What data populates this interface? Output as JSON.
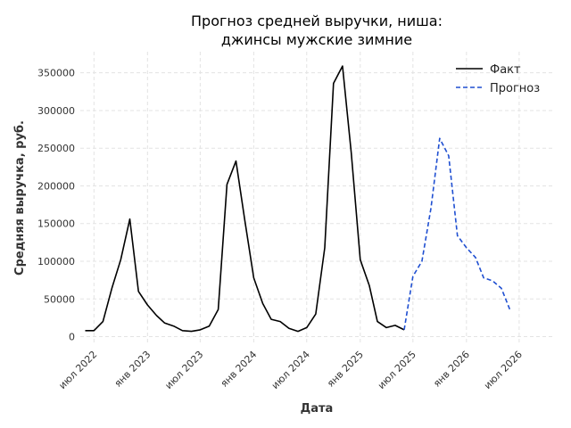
{
  "chart_data": {
    "type": "line",
    "title": [
      "Прогноз средней выручки, ниша:",
      "джинсы мужские зимние"
    ],
    "xlabel": "Дата",
    "ylabel": "Средняя выручка, руб.",
    "xlim": [
      "2022-05-15",
      "2026-11-01"
    ],
    "ylim": [
      -10000,
      378000
    ],
    "yticks": [
      0,
      50000,
      100000,
      150000,
      200000,
      250000,
      300000,
      350000
    ],
    "xticks": [
      {
        "date": "2022-07-01",
        "label": "июл 2022"
      },
      {
        "date": "2023-01-01",
        "label": "янв 2023"
      },
      {
        "date": "2023-07-01",
        "label": "июл 2023"
      },
      {
        "date": "2024-01-01",
        "label": "янв 2024"
      },
      {
        "date": "2024-07-01",
        "label": "июл 2024"
      },
      {
        "date": "2025-01-01",
        "label": "янв 2025"
      },
      {
        "date": "2025-07-01",
        "label": "июл 2025"
      },
      {
        "date": "2026-01-01",
        "label": "янв 2026"
      },
      {
        "date": "2026-07-01",
        "label": "июл 2026"
      }
    ],
    "grid": true,
    "legend_position": "top-right",
    "series": [
      {
        "name": "Факт",
        "color": "#000000",
        "style": "solid",
        "points": [
          [
            "2022-06-01",
            8000
          ],
          [
            "2022-07-01",
            8000
          ],
          [
            "2022-08-01",
            20000
          ],
          [
            "2022-09-01",
            65000
          ],
          [
            "2022-10-01",
            102000
          ],
          [
            "2022-11-01",
            156000
          ],
          [
            "2022-12-01",
            60000
          ],
          [
            "2023-01-01",
            42000
          ],
          [
            "2023-02-01",
            28000
          ],
          [
            "2023-03-01",
            18000
          ],
          [
            "2023-04-01",
            14000
          ],
          [
            "2023-05-01",
            8000
          ],
          [
            "2023-06-01",
            7000
          ],
          [
            "2023-07-01",
            9000
          ],
          [
            "2023-08-01",
            14000
          ],
          [
            "2023-09-01",
            36000
          ],
          [
            "2023-10-01",
            202000
          ],
          [
            "2023-11-01",
            233000
          ],
          [
            "2023-12-01",
            155000
          ],
          [
            "2024-01-01",
            78000
          ],
          [
            "2024-02-01",
            44000
          ],
          [
            "2024-03-01",
            23000
          ],
          [
            "2024-04-01",
            20000
          ],
          [
            "2024-05-01",
            11000
          ],
          [
            "2024-06-01",
            7000
          ],
          [
            "2024-07-01",
            12000
          ],
          [
            "2024-08-01",
            30000
          ],
          [
            "2024-09-01",
            118000
          ],
          [
            "2024-10-01",
            336000
          ],
          [
            "2024-11-01",
            359000
          ],
          [
            "2024-12-01",
            244000
          ],
          [
            "2025-01-01",
            102000
          ],
          [
            "2025-02-01",
            68000
          ],
          [
            "2025-03-01",
            20000
          ],
          [
            "2025-04-01",
            12000
          ],
          [
            "2025-05-01",
            15000
          ],
          [
            "2025-06-01",
            9000
          ]
        ]
      },
      {
        "name": "Прогноз",
        "color": "#1f4fd1",
        "style": "dashed",
        "points": [
          [
            "2025-06-01",
            9000
          ],
          [
            "2025-07-01",
            80000
          ],
          [
            "2025-08-01",
            100000
          ],
          [
            "2025-09-01",
            170000
          ],
          [
            "2025-10-01",
            263000
          ],
          [
            "2025-11-01",
            240000
          ],
          [
            "2025-12-01",
            134000
          ],
          [
            "2026-01-01",
            118000
          ],
          [
            "2026-02-01",
            105000
          ],
          [
            "2026-03-01",
            78000
          ],
          [
            "2026-04-01",
            74000
          ],
          [
            "2026-05-01",
            64000
          ],
          [
            "2026-06-01",
            34000
          ]
        ]
      }
    ]
  }
}
